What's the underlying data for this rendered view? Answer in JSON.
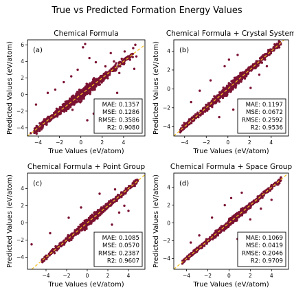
{
  "suptitle": "True vs Predicted Formation Energy Values",
  "colors": {
    "points": "#7b1232",
    "diagonal": "#f2c020",
    "axes": "#000000"
  },
  "chart_data": [
    {
      "type": "scatter",
      "panel_label": "(a)",
      "title": "Chemical Formula",
      "xlabel": "True Values (eV/atom)",
      "ylabel": "Predicted Values (eV/atom)",
      "xlim": [
        -5,
        6
      ],
      "ylim": [
        -5,
        6.6
      ],
      "xticks": [
        -4,
        -2,
        0,
        2,
        4
      ],
      "yticks": [
        -4,
        -2,
        0,
        2,
        4,
        6
      ],
      "reference_line": "y = x",
      "metrics": [
        {
          "label": "MAE:",
          "value": "0.1357"
        },
        {
          "label": "MSE:",
          "value": "0.1286"
        },
        {
          "label": "RMSE:",
          "value": "0.3586"
        },
        {
          "label": "R2:",
          "value": "0.9080"
        }
      ],
      "outliers": [
        [
          0.2,
          5.7
        ],
        [
          0.4,
          6.1
        ],
        [
          0.8,
          4.4
        ],
        [
          1.4,
          3.9
        ],
        [
          2.3,
          3.4
        ],
        [
          3.1,
          4.0
        ],
        [
          3.6,
          2.6
        ],
        [
          4.1,
          5.2
        ],
        [
          4.6,
          4.2
        ],
        [
          4.9,
          5.6
        ],
        [
          5.0,
          3.1
        ],
        [
          5.2,
          4.6
        ],
        [
          5.1,
          6.0
        ],
        [
          2.8,
          5.0
        ],
        [
          -2.4,
          0.6
        ],
        [
          -3.1,
          0.2
        ],
        [
          -1.6,
          1.5
        ],
        [
          -0.9,
          2.2
        ],
        [
          -0.3,
          3.0
        ],
        [
          1.9,
          -1.5
        ],
        [
          2.6,
          -0.9
        ],
        [
          -4.2,
          -1.2
        ],
        [
          1.2,
          -2.3
        ],
        [
          3.4,
          0.2
        ],
        [
          0.6,
          -3.1
        ]
      ]
    },
    {
      "type": "scatter",
      "panel_label": "(b)",
      "title": "Chemical Formula + Crystal System",
      "xlabel": "True Values (eV/atom)",
      "ylabel": "Predicted Values (eV/atom)",
      "xlim": [
        -5,
        5.6
      ],
      "ylim": [
        -5,
        5.2
      ],
      "xticks": [
        -4,
        -2,
        0,
        2,
        4
      ],
      "yticks": [
        -4,
        -2,
        0,
        2,
        4
      ],
      "reference_line": "y = x",
      "metrics": [
        {
          "label": "MAE:",
          "value": "0.1197"
        },
        {
          "label": "MSE:",
          "value": "0.0672"
        },
        {
          "label": "RMSE:",
          "value": "0.2592"
        },
        {
          "label": "R2:",
          "value": "0.9536"
        }
      ],
      "outliers": [
        [
          -0.3,
          2.4
        ],
        [
          0.1,
          3.1
        ],
        [
          0.9,
          3.6
        ],
        [
          -1.6,
          0.9
        ],
        [
          -2.6,
          -0.2
        ],
        [
          1.4,
          -1.2
        ],
        [
          2.1,
          0.1
        ],
        [
          2.9,
          1.5
        ],
        [
          3.6,
          2.4
        ],
        [
          -0.8,
          -3.0
        ],
        [
          0.5,
          -2.2
        ],
        [
          -3.4,
          -1.4
        ]
      ]
    },
    {
      "type": "scatter",
      "panel_label": "(c)",
      "title": "Chemical Formula + Point Group",
      "xlabel": "True Values (eV/atom)",
      "ylabel": "Predicted Values (eV/atom)",
      "xlim": [
        -5.8,
        5.6
      ],
      "ylim": [
        -5.4,
        5.8
      ],
      "xticks": [
        -4,
        -2,
        0,
        2,
        4
      ],
      "yticks": [
        -4,
        -2,
        0,
        2,
        4
      ],
      "reference_line": "y = x",
      "metrics": [
        {
          "label": "MAE:",
          "value": "0.1085"
        },
        {
          "label": "MSE:",
          "value": "0.0570"
        },
        {
          "label": "RMSE:",
          "value": "0.2387"
        },
        {
          "label": "R2:",
          "value": "0.9607"
        }
      ],
      "outliers": [
        [
          -5.4,
          -2.5
        ],
        [
          1.6,
          -1.3
        ],
        [
          2.4,
          -0.2
        ],
        [
          3.1,
          1.2
        ],
        [
          3.6,
          2.0
        ],
        [
          1.2,
          3.4
        ],
        [
          -0.6,
          1.8
        ],
        [
          -1.8,
          0.6
        ],
        [
          4.0,
          1.4
        ],
        [
          2.7,
          3.9
        ],
        [
          -3.6,
          -1.2
        ],
        [
          0.9,
          -2.1
        ]
      ]
    },
    {
      "type": "scatter",
      "panel_label": "(d)",
      "title": "Chemical Formula + Space Group",
      "xlabel": "True Values (eV/atom)",
      "ylabel": "Predicted Values (eV/atom)",
      "xlim": [
        -5.2,
        5.6
      ],
      "ylim": [
        -5.2,
        5.6
      ],
      "xticks": [
        -4,
        -2,
        0,
        2,
        4
      ],
      "yticks": [
        -4,
        -2,
        0,
        2,
        4
      ],
      "reference_line": "y = x",
      "metrics": [
        {
          "label": "MAE:",
          "value": "0.1069"
        },
        {
          "label": "MSE:",
          "value": "0.0419"
        },
        {
          "label": "RMSE:",
          "value": "0.2046"
        },
        {
          "label": "R2:",
          "value": "0.9709"
        }
      ],
      "outliers": [
        [
          -0.4,
          2.0
        ],
        [
          0.2,
          2.8
        ],
        [
          1.2,
          3.4
        ],
        [
          -1.6,
          0.6
        ],
        [
          2.0,
          0.4
        ],
        [
          3.0,
          1.6
        ],
        [
          -2.8,
          -1.4
        ],
        [
          0.8,
          -1.8
        ],
        [
          4.0,
          2.6
        ],
        [
          -3.6,
          -2.2
        ]
      ]
    }
  ]
}
